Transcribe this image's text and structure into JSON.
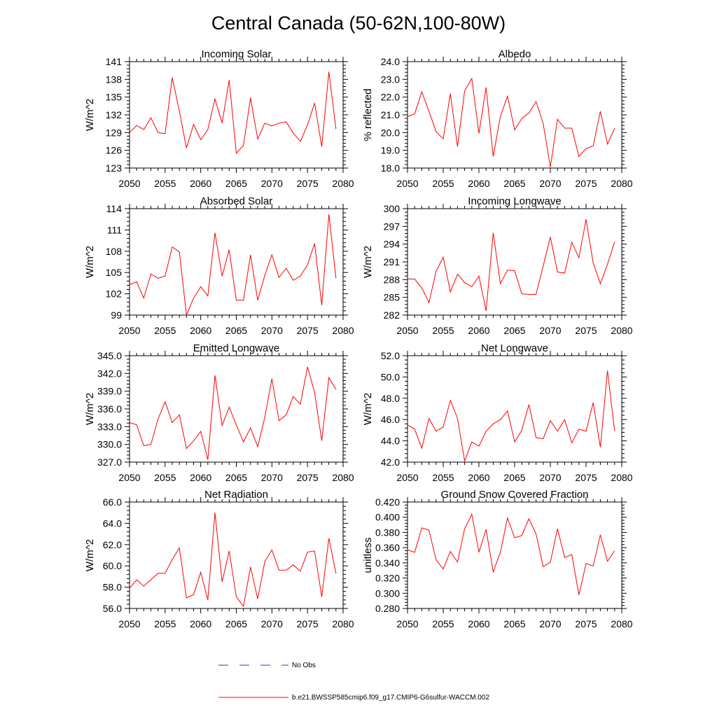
{
  "figure_title": "Central Canada (50-62N,100-80W)",
  "legend": {
    "no_obs": "No Obs",
    "model": "b.e21.BWSSP585cmip6.f09_g17.CMIP6-G6sulfur-WACCM.002",
    "no_obs_color": "#3333cc",
    "model_color": "#ff0000"
  },
  "chart_data": [
    {
      "type": "line",
      "title": "Incoming Solar",
      "ylabel": "W/m^2",
      "xlim": [
        2050,
        2080
      ],
      "ylim": [
        123,
        141
      ],
      "yticks": [
        123,
        126,
        129,
        132,
        135,
        138,
        141
      ],
      "ytick_labels": [
        "123",
        "126",
        "129",
        "132",
        "135",
        "138",
        "141"
      ],
      "xticks": [
        2050,
        2055,
        2060,
        2065,
        2070,
        2075,
        2080
      ],
      "series": [
        {
          "color": "#ff0000",
          "x": [
            2050,
            2051,
            2052,
            2053,
            2054,
            2055,
            2056,
            2057,
            2058,
            2059,
            2060,
            2061,
            2062,
            2063,
            2064,
            2065,
            2066,
            2067,
            2068,
            2069,
            2070,
            2071,
            2072,
            2073,
            2074,
            2075,
            2076,
            2077,
            2078,
            2079
          ],
          "y": [
            129.0,
            130.2,
            129.5,
            131.5,
            129.0,
            128.8,
            138.3,
            132.6,
            126.4,
            130.4,
            127.8,
            129.5,
            134.7,
            130.6,
            137.9,
            125.5,
            126.8,
            134.9,
            127.9,
            130.6,
            130.1,
            130.6,
            130.8,
            128.9,
            127.5,
            130.3,
            134.0,
            126.6,
            139.3,
            129.6
          ]
        }
      ]
    },
    {
      "type": "line",
      "title": "Albedo",
      "ylabel": "% reflected",
      "xlim": [
        2050,
        2080
      ],
      "ylim": [
        18.0,
        24.0
      ],
      "yticks": [
        18,
        19,
        20,
        21,
        22,
        23,
        24
      ],
      "ytick_labels": [
        "18.0",
        "19.0",
        "20.0",
        "21.0",
        "22.0",
        "23.0",
        "24.0"
      ],
      "xticks": [
        2050,
        2055,
        2060,
        2065,
        2070,
        2075,
        2080
      ],
      "series": [
        {
          "color": "#ff0000",
          "x": [
            2050,
            2051,
            2052,
            2053,
            2054,
            2055,
            2056,
            2057,
            2058,
            2059,
            2060,
            2061,
            2062,
            2063,
            2064,
            2065,
            2066,
            2067,
            2068,
            2069,
            2070,
            2071,
            2072,
            2073,
            2074,
            2075,
            2076,
            2077,
            2078,
            2079
          ],
          "y": [
            20.9,
            21.05,
            22.3,
            21.2,
            20.05,
            19.65,
            22.2,
            19.2,
            22.35,
            23.05,
            19.95,
            22.55,
            18.65,
            20.9,
            22.05,
            20.15,
            20.8,
            21.1,
            21.75,
            20.5,
            18.05,
            20.75,
            20.25,
            20.25,
            18.65,
            19.1,
            19.25,
            21.2,
            19.35,
            20.25
          ]
        }
      ]
    },
    {
      "type": "line",
      "title": "Absorbed Solar",
      "ylabel": "W/m^2",
      "xlim": [
        2050,
        2080
      ],
      "ylim": [
        99,
        114
      ],
      "yticks": [
        99,
        102,
        105,
        108,
        111,
        114
      ],
      "ytick_labels": [
        "99",
        "102",
        "105",
        "108",
        "111",
        "114"
      ],
      "xticks": [
        2050,
        2055,
        2060,
        2065,
        2070,
        2075,
        2080
      ],
      "series": [
        {
          "color": "#ff0000",
          "x": [
            2050,
            2051,
            2052,
            2053,
            2054,
            2055,
            2056,
            2057,
            2058,
            2059,
            2060,
            2061,
            2062,
            2063,
            2064,
            2065,
            2066,
            2067,
            2068,
            2069,
            2070,
            2071,
            2072,
            2073,
            2074,
            2075,
            2076,
            2077,
            2078,
            2079
          ],
          "y": [
            103.3,
            103.7,
            101.4,
            104.8,
            104.2,
            104.5,
            108.6,
            107.9,
            99.0,
            101.4,
            103.0,
            101.7,
            110.6,
            104.5,
            108.2,
            101.1,
            101.1,
            107.5,
            101.1,
            104.6,
            107.5,
            104.3,
            105.6,
            103.9,
            104.5,
            106.1,
            109.1,
            100.4,
            113.2,
            104.2
          ]
        }
      ]
    },
    {
      "type": "line",
      "title": "Incoming Longwave",
      "ylabel": "W/m^2",
      "xlim": [
        2050,
        2080
      ],
      "ylim": [
        282,
        300
      ],
      "yticks": [
        282,
        285,
        288,
        291,
        294,
        297,
        300
      ],
      "ytick_labels": [
        "282",
        "285",
        "288",
        "291",
        "294",
        "297",
        "300"
      ],
      "xticks": [
        2050,
        2055,
        2060,
        2065,
        2070,
        2075,
        2080
      ],
      "series": [
        {
          "color": "#ff0000",
          "x": [
            2050,
            2051,
            2052,
            2053,
            2054,
            2055,
            2056,
            2057,
            2058,
            2059,
            2060,
            2061,
            2062,
            2063,
            2064,
            2065,
            2066,
            2067,
            2068,
            2069,
            2070,
            2071,
            2072,
            2073,
            2074,
            2075,
            2076,
            2077,
            2078,
            2079
          ],
          "y": [
            288.1,
            288.1,
            286.6,
            284.1,
            289.4,
            291.8,
            285.9,
            288.9,
            287.5,
            286.8,
            288.6,
            282.7,
            295.9,
            287.3,
            289.6,
            289.5,
            285.6,
            285.5,
            285.5,
            290.3,
            295.2,
            289.3,
            289.1,
            294.3,
            291.7,
            298.2,
            290.8,
            287.3,
            290.6,
            294.4
          ]
        }
      ]
    },
    {
      "type": "line",
      "title": "Emitted Longwave",
      "ylabel": "W/m^2",
      "xlim": [
        2050,
        2080
      ],
      "ylim": [
        327.0,
        345.0
      ],
      "yticks": [
        327,
        330,
        333,
        336,
        339,
        342,
        345
      ],
      "ytick_labels": [
        "327.0",
        "330.0",
        "333.0",
        "336.0",
        "339.0",
        "342.0",
        "345.0"
      ],
      "xticks": [
        2050,
        2055,
        2060,
        2065,
        2070,
        2075,
        2080
      ],
      "series": [
        {
          "color": "#ff0000",
          "x": [
            2050,
            2051,
            2052,
            2053,
            2054,
            2055,
            2056,
            2057,
            2058,
            2059,
            2060,
            2061,
            2062,
            2063,
            2064,
            2065,
            2066,
            2067,
            2068,
            2069,
            2070,
            2071,
            2072,
            2073,
            2074,
            2075,
            2076,
            2077,
            2078,
            2079
          ],
          "y": [
            333.7,
            333.3,
            329.8,
            330.0,
            334.3,
            337.2,
            333.7,
            335.0,
            329.3,
            330.6,
            332.2,
            327.4,
            341.7,
            333.2,
            336.3,
            333.3,
            330.4,
            332.8,
            329.6,
            334.6,
            341.1,
            334.0,
            335.0,
            338.1,
            336.8,
            343.1,
            338.8,
            330.6,
            341.3,
            339.3
          ]
        }
      ]
    },
    {
      "type": "line",
      "title": "Net Longwave",
      "ylabel": "W/m^2",
      "xlim": [
        2050,
        2080
      ],
      "ylim": [
        42.0,
        52.0
      ],
      "yticks": [
        42,
        44,
        46,
        48,
        50,
        52
      ],
      "ytick_labels": [
        "42.0",
        "44.0",
        "46.0",
        "48.0",
        "50.0",
        "52.0"
      ],
      "xticks": [
        2050,
        2055,
        2060,
        2065,
        2070,
        2075,
        2080
      ],
      "series": [
        {
          "color": "#ff0000",
          "x": [
            2050,
            2051,
            2052,
            2053,
            2054,
            2055,
            2056,
            2057,
            2058,
            2059,
            2060,
            2061,
            2062,
            2063,
            2064,
            2065,
            2066,
            2067,
            2068,
            2069,
            2070,
            2071,
            2072,
            2073,
            2074,
            2075,
            2076,
            2077,
            2078,
            2079
          ],
          "y": [
            45.5,
            45.1,
            43.3,
            46.1,
            44.9,
            45.3,
            47.8,
            46.1,
            42.1,
            43.9,
            43.5,
            44.9,
            45.6,
            46.0,
            46.8,
            43.9,
            45.0,
            47.4,
            44.3,
            44.2,
            45.9,
            44.9,
            46.0,
            43.8,
            45.1,
            44.9,
            47.6,
            43.4,
            50.6,
            44.9
          ]
        }
      ]
    },
    {
      "type": "line",
      "title": "Net Radiation",
      "ylabel": "W/m^2",
      "xlim": [
        2050,
        2080
      ],
      "ylim": [
        56.0,
        66.0
      ],
      "yticks": [
        56,
        58,
        60,
        62,
        64,
        66
      ],
      "ytick_labels": [
        "56.0",
        "58.0",
        "60.0",
        "62.0",
        "64.0",
        "66.0"
      ],
      "xticks": [
        2050,
        2055,
        2060,
        2065,
        2070,
        2075,
        2080
      ],
      "series": [
        {
          "color": "#ff0000",
          "x": [
            2050,
            2051,
            2052,
            2053,
            2054,
            2055,
            2056,
            2057,
            2058,
            2059,
            2060,
            2061,
            2062,
            2063,
            2064,
            2065,
            2066,
            2067,
            2068,
            2069,
            2070,
            2071,
            2072,
            2073,
            2074,
            2075,
            2076,
            2077,
            2078,
            2079
          ],
          "y": [
            57.9,
            58.7,
            58.1,
            58.7,
            59.3,
            59.3,
            60.6,
            61.7,
            57.0,
            57.3,
            59.4,
            56.8,
            65.0,
            58.5,
            61.4,
            57.1,
            56.2,
            59.9,
            56.9,
            60.4,
            61.5,
            59.6,
            59.6,
            60.1,
            59.5,
            61.3,
            61.4,
            57.1,
            62.6,
            59.3
          ]
        }
      ]
    },
    {
      "type": "line",
      "title": "Ground Snow Covered Fraction",
      "ylabel": "unitless",
      "xlim": [
        2050,
        2080
      ],
      "ylim": [
        0.28,
        0.42
      ],
      "yticks": [
        0.28,
        0.3,
        0.32,
        0.34,
        0.36,
        0.38,
        0.4,
        0.42
      ],
      "ytick_labels": [
        "0.280",
        "0.300",
        "0.320",
        "0.340",
        "0.360",
        "0.380",
        "0.400",
        "0.420"
      ],
      "xticks": [
        2050,
        2055,
        2060,
        2065,
        2070,
        2075,
        2080
      ],
      "series": [
        {
          "color": "#ff0000",
          "x": [
            2050,
            2051,
            2052,
            2053,
            2054,
            2055,
            2056,
            2057,
            2058,
            2059,
            2060,
            2061,
            2062,
            2063,
            2064,
            2065,
            2066,
            2067,
            2068,
            2069,
            2070,
            2071,
            2072,
            2073,
            2074,
            2075,
            2076,
            2077,
            2078,
            2079
          ],
          "y": [
            0.357,
            0.354,
            0.386,
            0.383,
            0.344,
            0.332,
            0.355,
            0.341,
            0.385,
            0.404,
            0.354,
            0.384,
            0.328,
            0.354,
            0.399,
            0.373,
            0.376,
            0.398,
            0.378,
            0.335,
            0.341,
            0.385,
            0.347,
            0.351,
            0.298,
            0.339,
            0.336,
            0.377,
            0.342,
            0.356
          ]
        }
      ]
    }
  ]
}
